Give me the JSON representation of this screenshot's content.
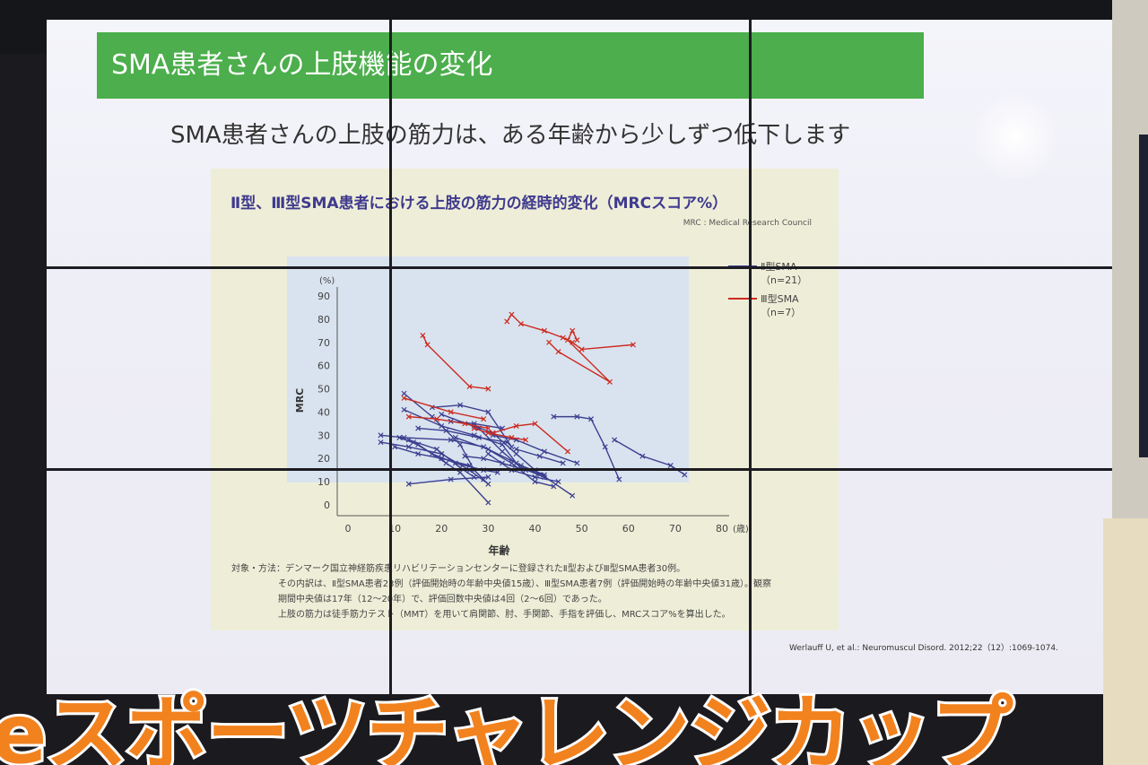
{
  "slide": {
    "title": "SMA患者さんの上肢機能の変化",
    "subtitle": "SMA患者さんの上肢の筋力は、ある年齢から少しずつ低下します",
    "credit_note": "MRC : Medical Research Council",
    "footnote": {
      "line1": "対象・方法：デンマーク国立神経筋疾患リハビリテーションセンターに登録されたⅡ型およびⅢ型SMA患者30例。",
      "line2": "その内訳は、Ⅱ型SMA患者23例（評価開始時の年齢中央値15歳）、Ⅲ型SMA患者7例（評価開始時の年齢中央値31歳）。観察",
      "line3": "期間中央値は17年（12〜20年）で、評価回数中央値は4回（2〜6回）であった。",
      "line4": "上肢の筋力は徒手筋力テスト（MMT）を用いて肩関節、肘、手関節、手指を評価し、MRCスコア%を算出した。"
    },
    "citation": "Werlauff U, et al.: Neuromuscul Disord. 2012;22（12）:1069-1074."
  },
  "banner": {
    "text": "eスポーツチャレンジカップ"
  },
  "colors": {
    "type2": "#3b3f8f",
    "type3": "#cc2a1f",
    "title_bar": "#4cae4c",
    "banner": "#f2821e"
  },
  "chart_data": {
    "type": "line",
    "title": "Ⅱ型、Ⅲ型SMA患者における上肢の筋力の経時的変化（MRCスコア%）",
    "xlabel": "年齢",
    "ylabel": "MRC",
    "y_unit": "(%)",
    "x_unit": "(歳)",
    "xlim": [
      0,
      80
    ],
    "ylim": [
      0,
      90
    ],
    "x_ticks": [
      0,
      10,
      20,
      30,
      40,
      50,
      60,
      70,
      80
    ],
    "y_ticks": [
      0,
      10,
      20,
      30,
      40,
      50,
      60,
      70,
      80,
      90
    ],
    "legend": [
      {
        "name": "Ⅱ型SMA",
        "n": "（n=21）",
        "series": "type2"
      },
      {
        "name": "Ⅲ型SMA",
        "n": "（n=7）",
        "series": "type3"
      }
    ],
    "series": [
      {
        "name": "Ⅱ型SMA",
        "group": "type2",
        "lines": [
          [
            [
              7,
              30
            ],
            [
              12,
              29
            ],
            [
              22,
              28
            ],
            [
              29,
              25
            ],
            [
              35,
              18
            ],
            [
              40,
              10
            ],
            [
              44,
              8
            ]
          ],
          [
            [
              7,
              27
            ],
            [
              13,
              25
            ],
            [
              20,
              22
            ],
            [
              26,
              15
            ],
            [
              30,
              9
            ]
          ],
          [
            [
              11,
              29
            ],
            [
              15,
              26
            ],
            [
              21,
              18
            ],
            [
              24,
              14
            ],
            [
              30,
              1
            ]
          ],
          [
            [
              12,
              48
            ],
            [
              18,
              38
            ],
            [
              24,
              26
            ],
            [
              27,
              15
            ],
            [
              29,
              11
            ]
          ],
          [
            [
              12,
              41
            ],
            [
              20,
              34
            ],
            [
              27,
              30
            ],
            [
              33,
              26
            ],
            [
              36,
              18
            ],
            [
              41,
              13
            ]
          ],
          [
            [
              13,
              28
            ],
            [
              19,
              24
            ],
            [
              24,
              16
            ],
            [
              27,
              12
            ]
          ],
          [
            [
              14,
              27
            ],
            [
              18,
              22
            ],
            [
              23,
              18
            ],
            [
              29,
              15
            ],
            [
              32,
              14
            ]
          ],
          [
            [
              13,
              9
            ],
            [
              22,
              11
            ],
            [
              30,
              12
            ]
          ],
          [
            [
              18,
              42
            ],
            [
              24,
              43
            ],
            [
              30,
              40
            ],
            [
              35,
              25
            ]
          ],
          [
            [
              20,
              39
            ],
            [
              28,
              33
            ],
            [
              33,
              23
            ],
            [
              37,
              16
            ],
            [
              42,
              12
            ]
          ],
          [
            [
              23,
              29
            ],
            [
              30,
              24
            ],
            [
              37,
              17
            ],
            [
              42,
              13
            ]
          ],
          [
            [
              27,
              34
            ],
            [
              31,
              31
            ],
            [
              36,
              22
            ],
            [
              40,
              15
            ],
            [
              48,
              4
            ]
          ],
          [
            [
              31,
              30
            ],
            [
              36,
              28
            ],
            [
              42,
              23
            ],
            [
              49,
              18
            ]
          ],
          [
            [
              30,
              22
            ],
            [
              35,
              15
            ],
            [
              40,
              12
            ],
            [
              45,
              10
            ]
          ],
          [
            [
              44,
              38
            ],
            [
              49,
              38
            ],
            [
              52,
              37
            ],
            [
              55,
              25
            ],
            [
              58,
              11
            ]
          ],
          [
            [
              57,
              28
            ],
            [
              63,
              21
            ],
            [
              69,
              17
            ],
            [
              72,
              13
            ]
          ],
          [
            [
              15,
              33
            ],
            [
              21,
              32
            ],
            [
              28,
              29
            ],
            [
              34,
              27
            ]
          ],
          [
            [
              36,
              24
            ],
            [
              41,
              21
            ],
            [
              46,
              18
            ]
          ],
          [
            [
              25,
              21
            ],
            [
              29,
              20
            ],
            [
              33,
              18
            ],
            [
              38,
              15
            ]
          ],
          [
            [
              22,
              36
            ],
            [
              27,
              35
            ],
            [
              33,
              33
            ]
          ],
          [
            [
              10,
              25
            ],
            [
              15,
              22
            ],
            [
              20,
              20
            ],
            [
              26,
              17
            ]
          ]
        ]
      },
      {
        "name": "Ⅲ型SMA",
        "group": "type3",
        "lines": [
          [
            [
              16,
              73
            ],
            [
              17,
              69
            ],
            [
              26,
              51
            ],
            [
              30,
              50
            ]
          ],
          [
            [
              34,
              79
            ],
            [
              35,
              82
            ],
            [
              37,
              78
            ],
            [
              42,
              75
            ],
            [
              46,
              72
            ],
            [
              48,
              70
            ],
            [
              50,
              67
            ],
            [
              61,
              69
            ]
          ],
          [
            [
              43,
              70
            ],
            [
              45,
              66
            ],
            [
              56,
              53
            ],
            [
              47,
              71
            ],
            [
              48,
              75
            ],
            [
              49,
              71
            ]
          ],
          [
            [
              12,
              46
            ],
            [
              22,
              40
            ],
            [
              29,
              37
            ]
          ],
          [
            [
              13,
              38
            ],
            [
              19,
              37
            ],
            [
              25,
              35
            ],
            [
              30,
              33
            ]
          ],
          [
            [
              31,
              31
            ],
            [
              36,
              34
            ],
            [
              40,
              35
            ],
            [
              47,
              23
            ]
          ],
          [
            [
              27,
              33
            ],
            [
              30,
              31
            ],
            [
              35,
              29
            ],
            [
              38,
              28
            ]
          ]
        ]
      }
    ]
  }
}
